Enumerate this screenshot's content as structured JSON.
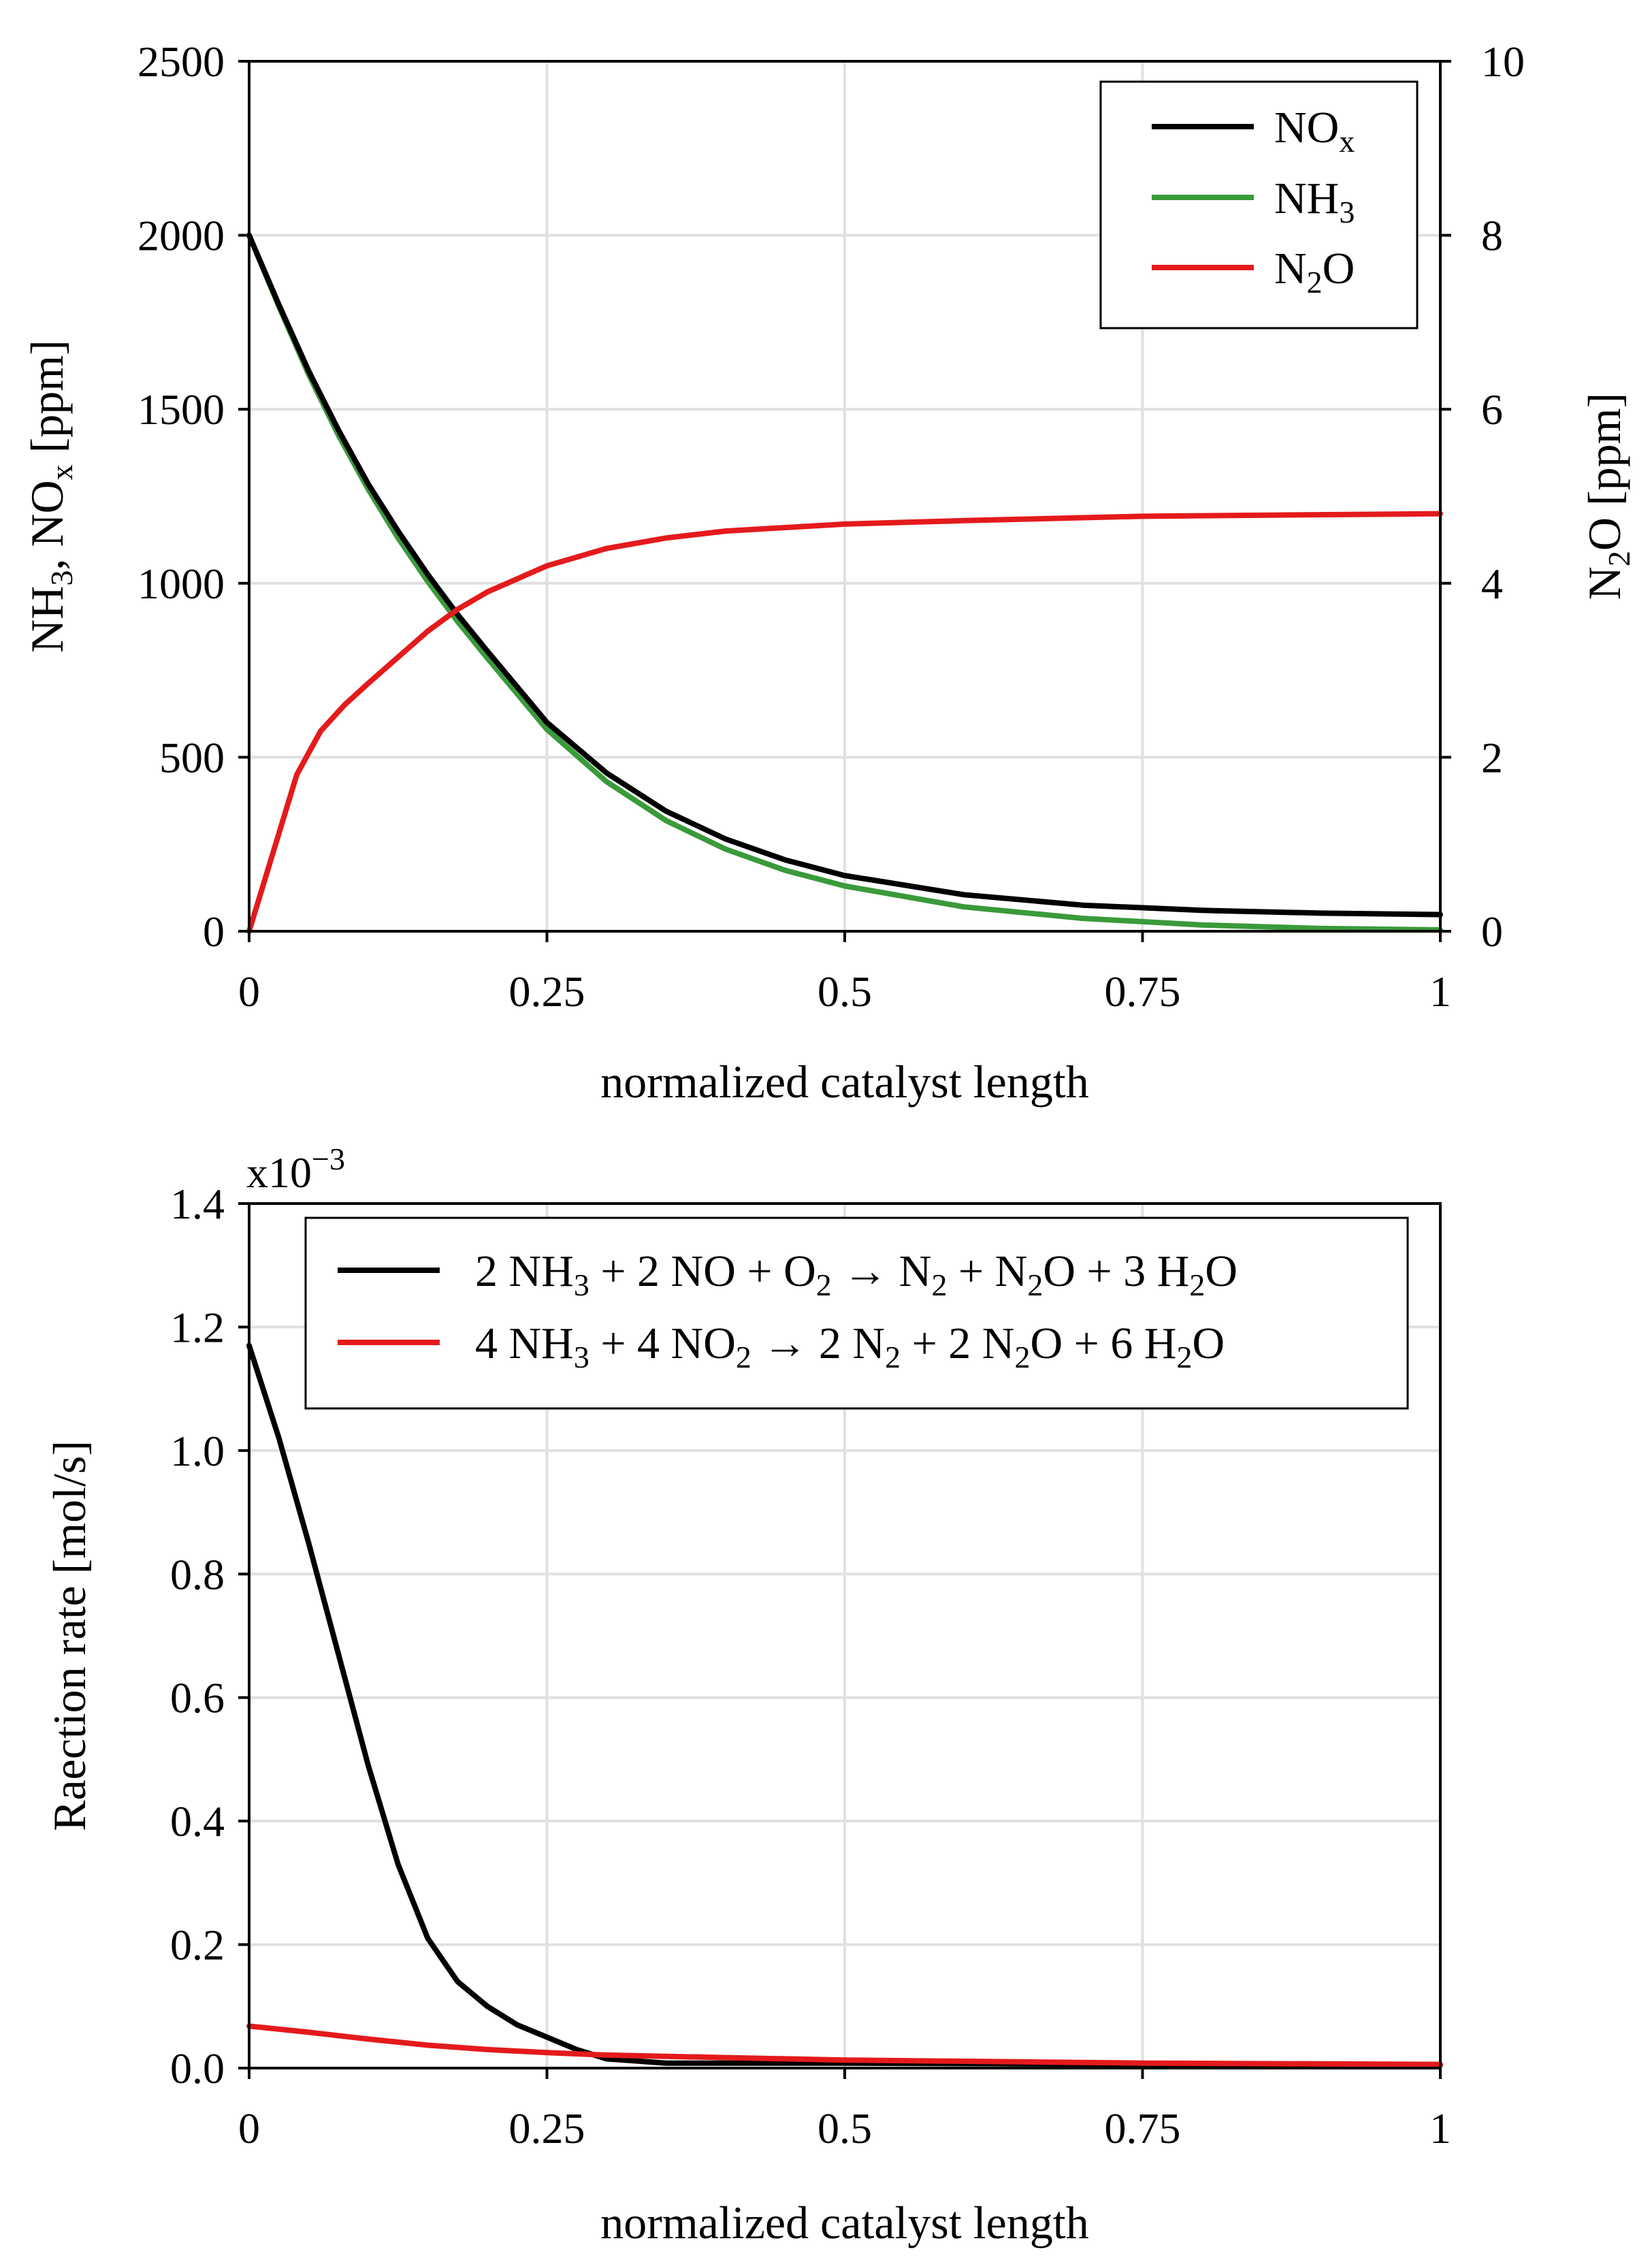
{
  "chart_data": [
    {
      "type": "line",
      "xlabel": "normalized catalyst length",
      "ylabel": "NH3, NOx [ppm]",
      "ylabel_right": "N2O [ppm]",
      "xlim": [
        0,
        1
      ],
      "ylim": [
        0,
        2500
      ],
      "ylim_right": [
        0,
        10
      ],
      "xticks": [
        0,
        0.25,
        0.5,
        0.75,
        1
      ],
      "xtick_labels": [
        "0",
        "0.25",
        "0.5",
        "0.75",
        "1"
      ],
      "yticks": [
        0,
        500,
        1000,
        1500,
        2000,
        2500
      ],
      "ytick_labels": [
        "0",
        "500",
        "1000",
        "1500",
        "2000",
        "2500"
      ],
      "yticks_right": [
        0,
        2,
        4,
        6,
        8,
        10
      ],
      "ytick_labels_right": [
        "0",
        "2",
        "4",
        "6",
        "8",
        "10"
      ],
      "grid": true,
      "legend_position": "top-right",
      "series": [
        {
          "name": "NOx",
          "color": "#000000",
          "axis": "left",
          "x": [
            0,
            0.025,
            0.05,
            0.075,
            0.1,
            0.125,
            0.15,
            0.175,
            0.2,
            0.25,
            0.3,
            0.35,
            0.4,
            0.45,
            0.5,
            0.6,
            0.7,
            0.8,
            0.9,
            1.0
          ],
          "y": [
            2000,
            1800,
            1610,
            1440,
            1285,
            1150,
            1025,
            910,
            805,
            600,
            455,
            345,
            265,
            205,
            160,
            105,
            75,
            60,
            52,
            48
          ]
        },
        {
          "name": "NH3",
          "color": "#3a9a3a",
          "axis": "left",
          "x": [
            0,
            0.025,
            0.05,
            0.075,
            0.1,
            0.125,
            0.15,
            0.175,
            0.2,
            0.25,
            0.3,
            0.35,
            0.4,
            0.45,
            0.5,
            0.6,
            0.7,
            0.8,
            0.9,
            1.0
          ],
          "y": [
            2000,
            1795,
            1600,
            1425,
            1270,
            1130,
            1005,
            890,
            785,
            580,
            430,
            318,
            236,
            175,
            130,
            70,
            37,
            18,
            8,
            4
          ]
        },
        {
          "name": "N2O",
          "color": "#e41a1c",
          "axis": "right",
          "x": [
            0,
            0.02,
            0.04,
            0.06,
            0.08,
            0.1,
            0.125,
            0.15,
            0.175,
            0.2,
            0.25,
            0.3,
            0.35,
            0.4,
            0.5,
            0.6,
            0.75,
            1.0
          ],
          "y": [
            0,
            0.9,
            1.8,
            2.3,
            2.6,
            2.85,
            3.15,
            3.45,
            3.7,
            3.9,
            4.2,
            4.4,
            4.52,
            4.6,
            4.68,
            4.72,
            4.77,
            4.8
          ]
        }
      ]
    },
    {
      "type": "line",
      "xlabel": "normalized catalyst length",
      "ylabel": "Raection rate [mol/s]",
      "scale_label": "x10",
      "scale_exponent": "−3",
      "xlim": [
        0,
        1
      ],
      "ylim": [
        0,
        1.4
      ],
      "xticks": [
        0,
        0.25,
        0.5,
        0.75,
        1
      ],
      "xtick_labels": [
        "0",
        "0.25",
        "0.5",
        "0.75",
        "1"
      ],
      "yticks": [
        0,
        0.2,
        0.4,
        0.6,
        0.8,
        1.0,
        1.2,
        1.4
      ],
      "ytick_labels": [
        "0.0",
        "0.2",
        "0.4",
        "0.6",
        "0.8",
        "1.0",
        "1.2",
        "1.4"
      ],
      "grid": true,
      "legend_position": "top",
      "series": [
        {
          "name": "2 NH3 + 2 NO + O2 → N2 + N2O + 3 H2O",
          "color": "#000000",
          "x": [
            0,
            0.025,
            0.05,
            0.075,
            0.1,
            0.125,
            0.15,
            0.175,
            0.2,
            0.225,
            0.25,
            0.275,
            0.3,
            0.35,
            0.4,
            0.5,
            0.75,
            1.0
          ],
          "y": [
            1.17,
            1.02,
            0.85,
            0.67,
            0.49,
            0.33,
            0.21,
            0.14,
            0.1,
            0.07,
            0.05,
            0.03,
            0.015,
            0.008,
            0.008,
            0.008,
            0.006,
            0.005
          ]
        },
        {
          "name": "4 NH3 + 4 NO2 → 2 N2 + 2 N2O + 6 H2O",
          "color": "#e41a1c",
          "x": [
            0,
            0.05,
            0.1,
            0.15,
            0.2,
            0.25,
            0.3,
            0.4,
            0.5,
            0.75,
            1.0
          ],
          "y": [
            0.068,
            0.058,
            0.047,
            0.037,
            0.03,
            0.025,
            0.021,
            0.017,
            0.013,
            0.008,
            0.006
          ]
        }
      ]
    }
  ],
  "legend1": {
    "items": [
      {
        "main": "NO",
        "sub": "x",
        "tail": ""
      },
      {
        "main": "NH",
        "sub": "3",
        "tail": ""
      },
      {
        "main": "N",
        "sub": "2",
        "tail": "O"
      }
    ]
  },
  "axis_labels": {
    "left1": {
      "a": "NH",
      "a_sub": "3",
      "b": ", NO",
      "b_sub": "x",
      "c": " [ppm]"
    },
    "right1": {
      "a": "N",
      "a_sub": "2",
      "b": "O [ppm]"
    }
  },
  "legend2": {
    "items": [
      {
        "parts": [
          "2 NH",
          "3",
          " + 2 NO + O",
          "2",
          " → N",
          "2",
          " + N",
          "2",
          "O + 3 H",
          "2",
          "O"
        ]
      },
      {
        "parts": [
          "4 NH",
          "3",
          " + 4 NO",
          "2",
          " → 2 N",
          "2",
          " + 2 N",
          "2",
          "O + 6 H",
          "2",
          "O"
        ]
      }
    ]
  }
}
